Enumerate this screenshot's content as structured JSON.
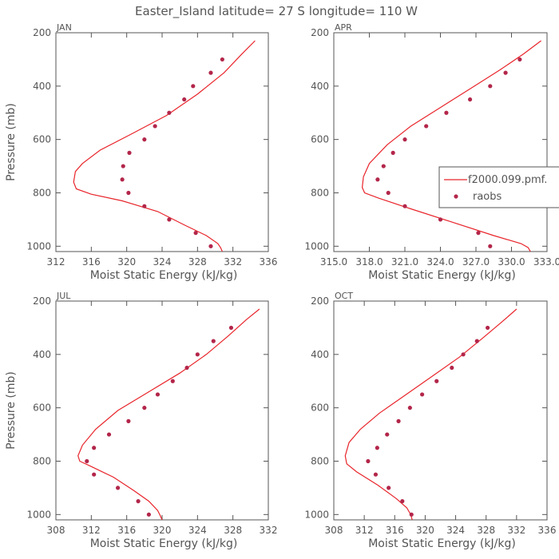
{
  "title": "Easter_Island  latitude= 27 S longitude= 110 W",
  "colors": {
    "model_line": "#e8242a",
    "obs_marker": "#b3264a",
    "axis": "#555555"
  },
  "chart_data": [
    {
      "type": "line",
      "panel": "JAN",
      "xlabel": "Moist Static Energy (kJ/kg)",
      "ylabel": "Pressure (mb)",
      "xlim": [
        312,
        336
      ],
      "ylim": [
        200,
        1020
      ],
      "y_inverted": true,
      "xticks": [
        312,
        316,
        320,
        324,
        328,
        332,
        336
      ],
      "xtick_labels": [
        "312",
        "316",
        "320",
        "324",
        "328",
        "332",
        "336"
      ],
      "yticks": [
        200,
        400,
        600,
        800,
        1000
      ],
      "ytick_labels": [
        "200",
        "400",
        "600",
        "800",
        "1000"
      ],
      "series": [
        {
          "name": "f2000.099.pmf",
          "kind": "line",
          "x": [
            334.5,
            333.0,
            331.0,
            328.0,
            324.5,
            320.5,
            317.0,
            315.0,
            314.2,
            314.0,
            314.3,
            316.0,
            319.5,
            323.5,
            326.5,
            329.0,
            330.3,
            330.6,
            330.8
          ],
          "y": [
            230,
            280,
            350,
            430,
            510,
            580,
            640,
            690,
            720,
            760,
            785,
            805,
            830,
            870,
            920,
            960,
            990,
            1005,
            1020
          ]
        },
        {
          "name": "raobs",
          "kind": "scatter",
          "x": [
            330.8,
            329.5,
            327.5,
            326.5,
            324.8,
            323.2,
            322.0,
            320.3,
            319.6,
            319.5,
            320.2,
            322.0,
            324.8,
            327.8,
            329.5
          ],
          "y": [
            300,
            350,
            400,
            450,
            500,
            550,
            600,
            650,
            700,
            750,
            800,
            850,
            900,
            950,
            1000
          ]
        }
      ]
    },
    {
      "type": "line",
      "panel": "APR",
      "xlabel": "Moist Static Energy (kJ/kg)",
      "ylabel": "",
      "xlim": [
        315,
        333
      ],
      "ylim": [
        200,
        1020
      ],
      "y_inverted": true,
      "xticks": [
        315,
        318,
        321,
        324,
        327,
        330,
        333
      ],
      "xtick_labels": [
        "315.0",
        "318.0",
        "321.0",
        "324.0",
        "327.0",
        "330.0",
        "333.0"
      ],
      "yticks": [
        200,
        400,
        600,
        800,
        1000
      ],
      "ytick_labels": [
        "200",
        "400",
        "600",
        "800",
        "1000"
      ],
      "legend": {
        "position": "right",
        "entries": [
          "f2000.099.pmf.",
          "raobs"
        ]
      },
      "series": [
        {
          "name": "f2000.099.pmf",
          "kind": "line",
          "x": [
            332.5,
            331.0,
            329.0,
            326.5,
            324.0,
            321.5,
            319.5,
            318.0,
            317.5,
            317.4,
            317.6,
            318.8,
            321.5,
            325.0,
            328.5,
            330.8,
            331.4,
            331.6
          ],
          "y": [
            230,
            280,
            340,
            410,
            480,
            550,
            620,
            690,
            740,
            780,
            800,
            820,
            860,
            910,
            960,
            990,
            1005,
            1020
          ]
        },
        {
          "name": "raobs",
          "kind": "scatter",
          "x": [
            330.7,
            329.5,
            328.2,
            326.5,
            324.5,
            322.8,
            321.0,
            320.0,
            319.2,
            318.7,
            319.6,
            321.0,
            324.0,
            327.2,
            328.2
          ],
          "y": [
            300,
            350,
            400,
            450,
            500,
            550,
            600,
            650,
            700,
            750,
            800,
            850,
            900,
            950,
            1000
          ]
        }
      ]
    },
    {
      "type": "line",
      "panel": "JUL",
      "xlabel": "Moist Static Energy (kJ/kg)",
      "ylabel": "Pressure (mb)",
      "xlim": [
        308,
        332
      ],
      "ylim": [
        200,
        1020
      ],
      "y_inverted": true,
      "xticks": [
        308,
        312,
        316,
        320,
        324,
        328,
        332
      ],
      "xtick_labels": [
        "308",
        "312",
        "316",
        "320",
        "324",
        "328",
        "332"
      ],
      "yticks": [
        200,
        400,
        600,
        800,
        1000
      ],
      "ytick_labels": [
        "200",
        "400",
        "600",
        "800",
        "1000"
      ],
      "series": [
        {
          "name": "f2000.099.pmf",
          "kind": "line",
          "x": [
            331.0,
            329.5,
            327.5,
            325.0,
            322.0,
            318.5,
            315.0,
            312.5,
            311.0,
            310.5,
            310.7,
            312.0,
            314.5,
            316.8,
            318.5,
            319.5,
            319.8,
            320.0
          ],
          "y": [
            230,
            270,
            330,
            400,
            470,
            540,
            610,
            680,
            740,
            780,
            800,
            820,
            860,
            910,
            950,
            985,
            1005,
            1020
          ]
        },
        {
          "name": "raobs",
          "kind": "scatter",
          "x": [
            327.8,
            325.8,
            324.0,
            322.8,
            321.2,
            319.5,
            318.0,
            316.2,
            314.0,
            312.3,
            311.5,
            312.3,
            315.0,
            317.3,
            318.5
          ],
          "y": [
            300,
            350,
            400,
            450,
            500,
            550,
            600,
            650,
            700,
            750,
            800,
            850,
            900,
            950,
            1000
          ]
        }
      ]
    },
    {
      "type": "line",
      "panel": "OCT",
      "xlabel": "Moist Static Energy (kJ/kg)",
      "ylabel": "",
      "xlim": [
        308,
        336
      ],
      "ylim": [
        200,
        1020
      ],
      "y_inverted": true,
      "xticks": [
        308,
        312,
        316,
        320,
        324,
        328,
        332,
        336
      ],
      "xtick_labels": [
        "308",
        "312",
        "316",
        "320",
        "324",
        "328",
        "332",
        "336"
      ],
      "yticks": [
        200,
        400,
        600,
        800,
        1000
      ],
      "ytick_labels": [
        "200",
        "400",
        "600",
        "800",
        "1000"
      ],
      "series": [
        {
          "name": "f2000.099.pmf",
          "kind": "line",
          "x": [
            332.0,
            330.0,
            327.5,
            324.5,
            321.0,
            317.5,
            314.0,
            311.5,
            310.0,
            309.5,
            309.7,
            311.0,
            313.8,
            316.2,
            317.6,
            318.1,
            318.3
          ],
          "y": [
            230,
            280,
            340,
            410,
            480,
            550,
            620,
            680,
            730,
            780,
            810,
            840,
            890,
            940,
            975,
            1000,
            1020
          ]
        },
        {
          "name": "raobs",
          "kind": "scatter",
          "x": [
            328.2,
            326.8,
            325.0,
            323.5,
            321.5,
            319.6,
            318.0,
            316.5,
            315.0,
            313.7,
            312.5,
            313.5,
            315.2,
            317.0,
            318.2
          ],
          "y": [
            300,
            350,
            400,
            450,
            500,
            550,
            600,
            650,
            700,
            750,
            800,
            850,
            900,
            950,
            1000
          ]
        }
      ]
    }
  ]
}
